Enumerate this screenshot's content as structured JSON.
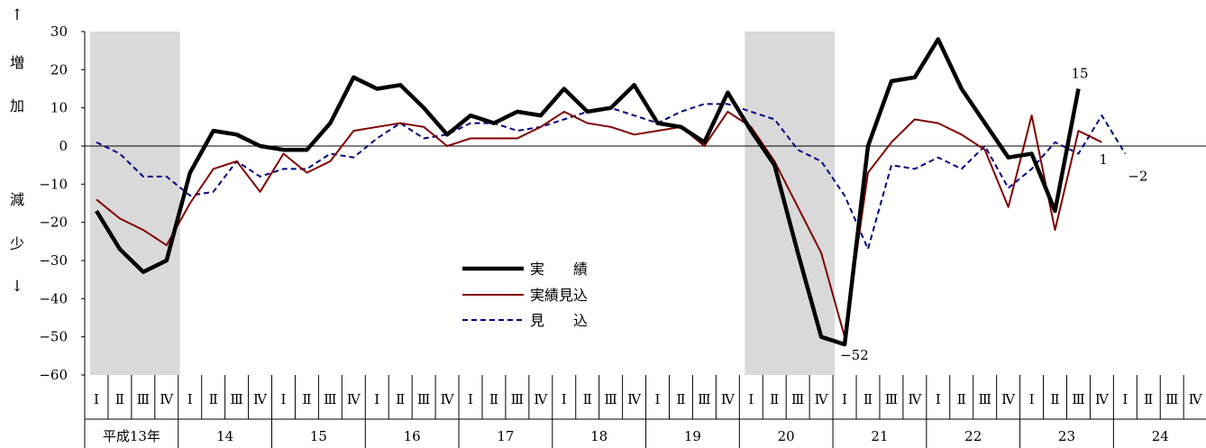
{
  "chart_data": {
    "type": "line",
    "title": "",
    "xlabel": "",
    "ylabel": "",
    "ylim": [
      -60,
      30
    ],
    "yticks": [
      30,
      20,
      10,
      0,
      -10,
      -20,
      -30,
      -40,
      -50,
      -60
    ],
    "ytick_labels": [
      "30",
      "20",
      "10",
      "0",
      "−10",
      "−20",
      "−30",
      "−40",
      "−50",
      "−60"
    ],
    "y_side_labels": {
      "up_arrow": "↑",
      "increase": [
        "増",
        "加"
      ],
      "decrease": [
        "減",
        "少"
      ],
      "down_arrow": "↓"
    },
    "quarter_labels": [
      "Ⅰ",
      "Ⅱ",
      "Ⅲ",
      "Ⅳ"
    ],
    "x_start_quarter": 1,
    "year_labels": [
      "平成13年",
      "14",
      "15",
      "16",
      "17",
      "18",
      "19",
      "20",
      "21",
      "22",
      "23",
      "24"
    ],
    "shaded_periods": [
      {
        "from": "平成13年 Ⅰ",
        "to": "14 Ⅰ"
      },
      {
        "from": "20 Ⅰ",
        "to": "21 Ⅰ"
      }
    ],
    "grid": false,
    "legend_position": "center-bottom",
    "series": [
      {
        "name": "実　　績",
        "color": "#000000",
        "style": "solid-thick",
        "values": [
          -17,
          -27,
          -33,
          -30,
          -7,
          4,
          3,
          0,
          -1,
          -1,
          6,
          18,
          15,
          16,
          10,
          3,
          8,
          6,
          9,
          8,
          15,
          9,
          10,
          16,
          6,
          5,
          1,
          14,
          4,
          -5,
          -28,
          -50,
          -52,
          0,
          17,
          18,
          28,
          15,
          6,
          -3,
          -2,
          -17,
          15,
          null,
          null,
          null,
          null,
          null
        ],
        "end_label": "15"
      },
      {
        "name": "実績見込",
        "color": "#7f0000",
        "style": "solid-thin",
        "values": [
          -14,
          -19,
          -22,
          -26,
          -15,
          -6,
          -4,
          -12,
          -2,
          -7,
          -4,
          4,
          5,
          6,
          5,
          0,
          2,
          2,
          2,
          5,
          9,
          6,
          5,
          3,
          4,
          5,
          0,
          9,
          5,
          -4,
          -16,
          -28,
          -50,
          -7,
          1,
          7,
          6,
          3,
          -1,
          -16,
          8,
          -22,
          4,
          1,
          null,
          null,
          null,
          null
        ],
        "end_label": "1"
      },
      {
        "name": "見　　込",
        "color": "#000080",
        "style": "dashed",
        "values": [
          1,
          -2,
          -8,
          -8,
          -13,
          -12,
          -4,
          -8,
          -6,
          -6,
          -2,
          -3,
          2,
          6,
          2,
          3,
          6,
          6,
          4,
          5,
          7,
          9,
          10,
          8,
          6,
          9,
          11,
          11,
          9,
          7,
          -1,
          -4,
          -13,
          -27,
          -5,
          -6,
          -3,
          -6,
          0,
          -11,
          -6,
          1,
          -2,
          8,
          -2,
          null,
          null,
          null
        ],
        "end_label": "−2"
      }
    ],
    "annotations": [
      {
        "text": "−52",
        "near": "21 Ⅰ"
      }
    ]
  }
}
